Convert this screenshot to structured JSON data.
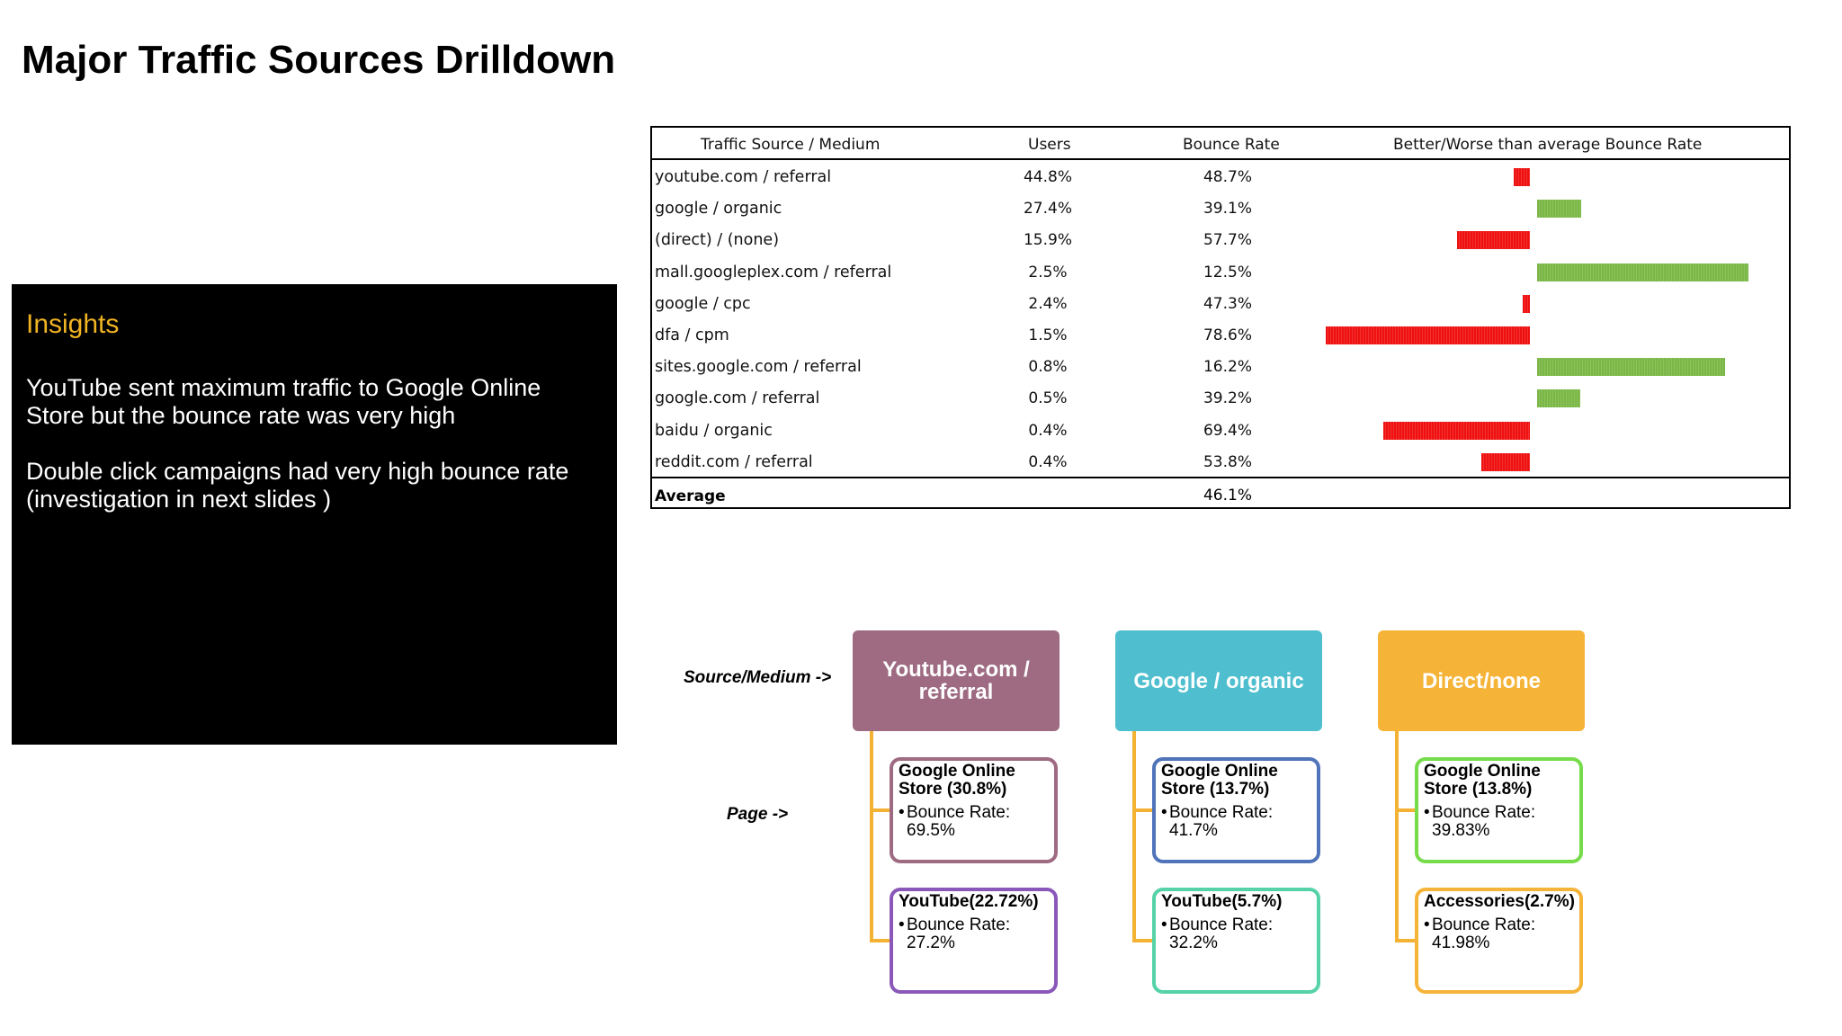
{
  "title": "Major Traffic Sources Drilldown",
  "insights": {
    "heading": "Insights",
    "paragraphs": [
      "YouTube sent maximum traffic to Google Online Store but the bounce rate was very high",
      "Double click campaigns had very high bounce rate (investigation in next slides )"
    ],
    "heading_color": "#f0b323"
  },
  "table": {
    "headers": {
      "source": "Traffic Source / Medium",
      "users": "Users",
      "bounce": "Bounce Rate",
      "compare": "Better/Worse than average Bounce Rate"
    },
    "rows": [
      {
        "source": "youtube.com / referral",
        "users": "44.8%",
        "bounce": "48.7%",
        "bounce_value": 48.7
      },
      {
        "source": "google / organic",
        "users": "27.4%",
        "bounce": "39.1%",
        "bounce_value": 39.1
      },
      {
        "source": "(direct) / (none)",
        "users": "15.9%",
        "bounce": "57.7%",
        "bounce_value": 57.7
      },
      {
        "source": "mall.googleplex.com / referral",
        "users": "2.5%",
        "bounce": "12.5%",
        "bounce_value": 12.5
      },
      {
        "source": "google / cpc",
        "users": "2.4%",
        "bounce": "47.3%",
        "bounce_value": 47.3
      },
      {
        "source": "dfa / cpm",
        "users": "1.5%",
        "bounce": "78.6%",
        "bounce_value": 78.6
      },
      {
        "source": "sites.google.com / referral",
        "users": "0.8%",
        "bounce": "16.2%",
        "bounce_value": 16.2
      },
      {
        "source": "google.com / referral",
        "users": "0.5%",
        "bounce": "39.2%",
        "bounce_value": 39.2
      },
      {
        "source": "baidu / organic",
        "users": "0.4%",
        "bounce": "69.4%",
        "bounce_value": 69.4
      },
      {
        "source": "reddit.com / referral",
        "users": "0.4%",
        "bounce": "53.8%",
        "bounce_value": 53.8
      }
    ],
    "footer": {
      "label": "Average",
      "bounce": "46.1%",
      "bounce_value": 46.1
    },
    "colors": {
      "worse": "#ee1111",
      "better": "#7ab648"
    }
  },
  "diagram": {
    "source_label": "Source/Medium ->",
    "page_label": "Page ->",
    "bullet_label": "Bounce Rate:",
    "columns": [
      {
        "source": "Youtube.com / referral",
        "color": "#9e6b82",
        "pages": [
          {
            "title": "Google Online Store (30.8%)",
            "bounce": "69.5%",
            "border": "#9e6b82"
          },
          {
            "title": "YouTube(22.72%)",
            "bounce": "27.2%",
            "border": "#8a58b8"
          }
        ]
      },
      {
        "source": "Google / organic",
        "color": "#4fbfcf",
        "pages": [
          {
            "title": "Google Online Store (13.7%)",
            "bounce": "41.7%",
            "border": "#4f74b9"
          },
          {
            "title": "YouTube(5.7%)",
            "bounce": "32.2%",
            "border": "#55d2a8"
          }
        ]
      },
      {
        "source": "Direct/none",
        "color": "#f5b438",
        "pages": [
          {
            "title": "Google Online Store (13.8%)",
            "bounce": "39.83%",
            "border": "#76dc4a"
          },
          {
            "title": "Accessories(2.7%)",
            "bounce": "41.98%",
            "border": "#f5b438"
          }
        ]
      }
    ],
    "connector_color": "#f3b234"
  }
}
